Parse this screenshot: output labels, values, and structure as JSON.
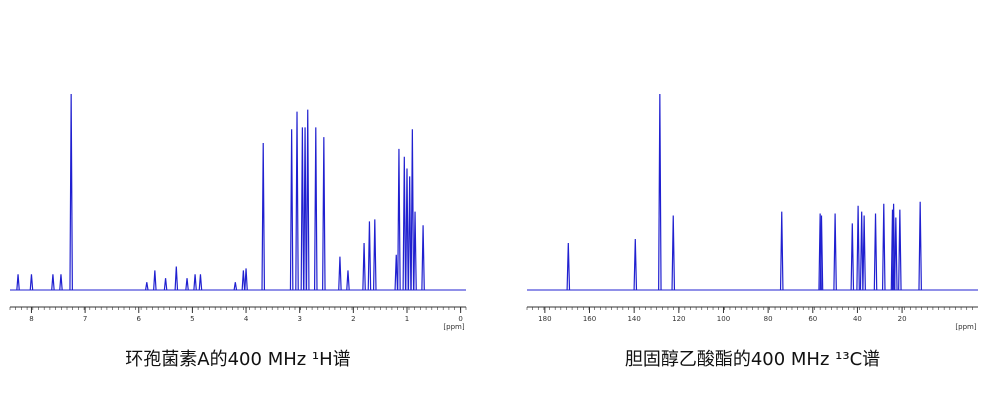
{
  "chart_data": [
    {
      "type": "spectrum",
      "title": "环孢菌素A的400 MHz ¹H谱",
      "x_label": "[ppm]",
      "color": "#2020d0",
      "xlim": [
        8.4,
        -0.1
      ],
      "xticks": [
        8,
        7,
        6,
        5,
        4,
        3,
        2,
        1,
        0
      ],
      "ylim": [
        0,
        100
      ],
      "x": [
        8.25,
        8.0,
        7.6,
        7.45,
        7.26,
        5.85,
        5.7,
        5.5,
        5.3,
        5.1,
        4.95,
        4.85,
        4.2,
        4.05,
        4.0,
        3.68,
        3.15,
        3.05,
        2.95,
        2.9,
        2.85,
        2.7,
        2.55,
        2.25,
        2.1,
        1.8,
        1.7,
        1.6,
        1.2,
        1.15,
        1.05,
        1.0,
        0.95,
        0.9,
        0.85,
        0.7
      ],
      "values": [
        8,
        8,
        8,
        8,
        100,
        4,
        10,
        6,
        12,
        6,
        8,
        8,
        4,
        10,
        11,
        75,
        82,
        91,
        83,
        83,
        92,
        83,
        78,
        17,
        10,
        24,
        35,
        36,
        18,
        72,
        68,
        62,
        58,
        82,
        40,
        33
      ]
    },
    {
      "type": "spectrum",
      "title": "胆固醇乙酸酯的400 MHz ¹³C谱",
      "x_label": "[ppm]",
      "color": "#2020d0",
      "xlim": [
        188,
        -14
      ],
      "xticks": [
        180,
        160,
        140,
        120,
        100,
        80,
        60,
        40,
        20
      ],
      "ylim": [
        0,
        100
      ],
      "x": [
        169.5,
        139.5,
        128.5,
        122.5,
        73.9,
        56.7,
        56.1,
        50.0,
        42.3,
        39.7,
        38.1,
        37.0,
        31.9,
        28.2,
        24.3,
        23.8,
        22.8,
        21.0,
        11.9
      ],
      "values": [
        24,
        26,
        100,
        38,
        40,
        39,
        38,
        39,
        34,
        43,
        40,
        38,
        39,
        44,
        41,
        44,
        37,
        41,
        45
      ]
    }
  ]
}
